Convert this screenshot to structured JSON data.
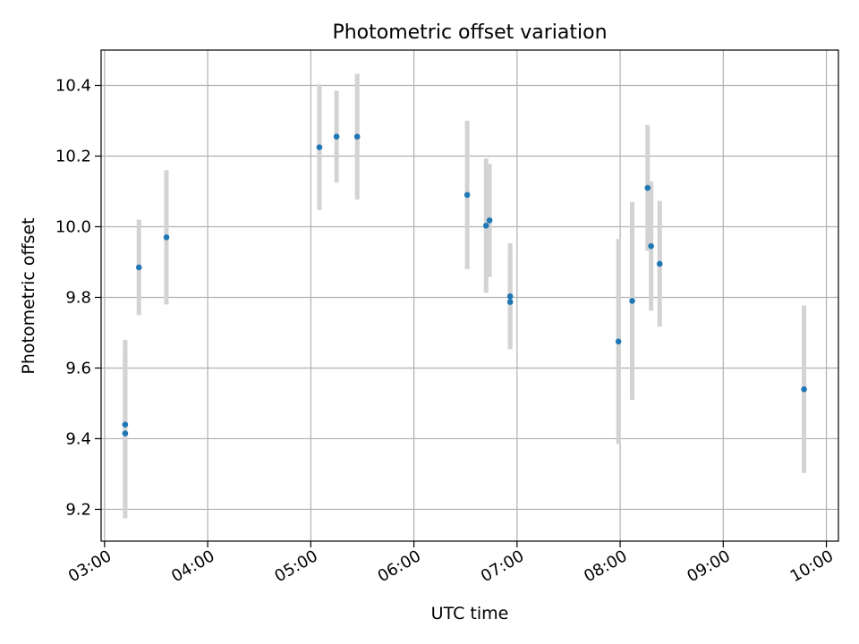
{
  "chart_data": {
    "type": "scatter",
    "title": "Photometric offset variation",
    "xlabel": "UTC time",
    "ylabel": "Photometric offset",
    "grid": true,
    "x_is_time": true,
    "xlim": [
      "02:58",
      "10:07"
    ],
    "ylim": [
      9.11,
      10.5
    ],
    "xticks": [
      "03:00",
      "04:00",
      "05:00",
      "06:00",
      "07:00",
      "08:00",
      "09:00",
      "10:00"
    ],
    "yticks": [
      9.2,
      9.4,
      9.6,
      9.8,
      10.0,
      10.2,
      10.4
    ],
    "ytick_labels": [
      "9.2",
      "9.4",
      "9.6",
      "9.8",
      "10.0",
      "10.2",
      "10.4"
    ],
    "point_color": "#1f77b4",
    "errorbar_color": "#d3d3d3",
    "points": [
      {
        "x": "03:12",
        "y": 9.44,
        "err": 0.24
      },
      {
        "x": "03:12",
        "y": 9.415,
        "err": 0.24
      },
      {
        "x": "03:20",
        "y": 9.885,
        "err": 0.135
      },
      {
        "x": "03:36",
        "y": 9.97,
        "err": 0.19
      },
      {
        "x": "05:05",
        "y": 10.225,
        "err": 0.178
      },
      {
        "x": "05:15",
        "y": 10.255,
        "err": 0.13
      },
      {
        "x": "05:27",
        "y": 10.255,
        "err": 0.178
      },
      {
        "x": "06:31",
        "y": 10.09,
        "err": 0.21
      },
      {
        "x": "06:42",
        "y": 10.003,
        "err": 0.19
      },
      {
        "x": "06:44",
        "y": 10.018,
        "err": 0.16
      },
      {
        "x": "06:56",
        "y": 9.803,
        "err": 0.15
      },
      {
        "x": "06:56",
        "y": 9.787,
        "err": 0.13
      },
      {
        "x": "07:59",
        "y": 9.675,
        "err": 0.29
      },
      {
        "x": "08:07",
        "y": 9.79,
        "err": 0.28
      },
      {
        "x": "08:16",
        "y": 10.11,
        "err": 0.178
      },
      {
        "x": "08:18",
        "y": 9.945,
        "err": 0.183
      },
      {
        "x": "08:23",
        "y": 9.895,
        "err": 0.178
      },
      {
        "x": "09:47",
        "y": 9.54,
        "err": 0.237
      }
    ]
  }
}
